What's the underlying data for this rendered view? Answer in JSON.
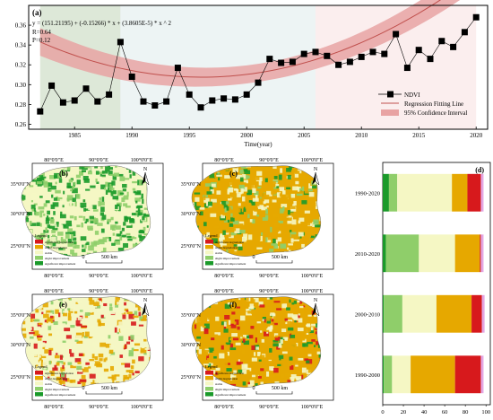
{
  "panel_a": {
    "label": "(a)",
    "equation": "y = (151.21195) + (-0.15266) * x + (3.8605E-5) * x ^ 2",
    "r_text": "R=0.64",
    "p_text": "P=0.12",
    "legend": {
      "ndvi": "NDVI",
      "fit": "Regression Fitting Line",
      "ci": "95% Confidence Interval"
    }
  },
  "map_common": {
    "lon_ticks": [
      "80°0'0\"E",
      "90°0'0\"E",
      "100°0'0\"E"
    ],
    "lat_ticks": [
      "35°0'0\"N",
      "30°0'0\"N",
      "25°0'0\"N"
    ],
    "north": "N",
    "scale_zero": "0",
    "scale_label": "500 km",
    "legend_title": "Legend",
    "legend_items": [
      "significant degradation",
      "slight degradation",
      "stable",
      "slight improvement",
      "significant improvement"
    ]
  },
  "maps": [
    {
      "label": "(b)"
    },
    {
      "label": "(c)"
    },
    {
      "label": "(e)"
    },
    {
      "label": "(f)"
    }
  ],
  "colors": {
    "sig_deg": "#d7191c",
    "slight_deg": "#e6a800",
    "stable": "#f5f7c4",
    "slight_imp": "#8fce6a",
    "sig_imp": "#1a9a2a",
    "ci_band": "#e8a3a3",
    "fit_line": "#c0504d"
  },
  "chart_data": [
    {
      "type": "scatter",
      "title": "",
      "xlabel": "Time(year)",
      "ylabel": "",
      "xlim": [
        1981,
        2021
      ],
      "ylim": [
        0.255,
        0.38
      ],
      "x_ticks": [
        1985,
        1990,
        1995,
        2000,
        2005,
        2010,
        2015,
        2020
      ],
      "y_ticks": [
        0.26,
        0.28,
        0.3,
        0.32,
        0.34,
        0.36
      ],
      "y_tick_labels": [
        "0.26",
        "0.28",
        "0.30",
        "0.32",
        "0.34",
        "0.36"
      ],
      "legend_position": "lower-right",
      "grid": false,
      "series": [
        {
          "name": "NDVI",
          "x": [
            1982,
            1983,
            1984,
            1985,
            1986,
            1987,
            1988,
            1989,
            1990,
            1991,
            1992,
            1993,
            1994,
            1995,
            1996,
            1997,
            1998,
            1999,
            2000,
            2001,
            2002,
            2003,
            2004,
            2005,
            2006,
            2007,
            2008,
            2009,
            2010,
            2011,
            2012,
            2013,
            2014,
            2015,
            2016,
            2017,
            2018,
            2019,
            2020
          ],
          "y": [
            0.273,
            0.299,
            0.282,
            0.284,
            0.296,
            0.283,
            0.29,
            0.343,
            0.308,
            0.283,
            0.279,
            0.283,
            0.317,
            0.29,
            0.277,
            0.284,
            0.286,
            0.285,
            0.29,
            0.302,
            0.326,
            0.322,
            0.323,
            0.331,
            0.333,
            0.329,
            0.32,
            0.323,
            0.328,
            0.333,
            0.331,
            0.351,
            0.317,
            0.335,
            0.326,
            0.344,
            0.338,
            0.353,
            0.368
          ]
        }
      ],
      "shaded_periods": [
        {
          "from": 1982,
          "to": 1989,
          "color": "#dde8d8"
        },
        {
          "from": 1989,
          "to": 2006,
          "color": "#edf4f4"
        },
        {
          "from": 2006,
          "to": 2020,
          "color": "#fbeeee"
        }
      ]
    },
    {
      "type": "bar",
      "orientation": "horizontal-stacked",
      "panel_label": "(d)",
      "categories": [
        "1990-2020",
        "2010-2020",
        "2000-2010",
        "1990-2000"
      ],
      "x_ticks": [
        0,
        20,
        40,
        60,
        80,
        100
      ],
      "xlim": [
        0,
        100
      ],
      "series": [
        {
          "name": "significant improvement",
          "values": [
            6,
            3,
            1,
            1
          ]
        },
        {
          "name": "slight improvement",
          "values": [
            8,
            32,
            18,
            8
          ]
        },
        {
          "name": "stable",
          "values": [
            53,
            35,
            33,
            18
          ]
        },
        {
          "name": "slight degradation",
          "values": [
            15,
            24,
            34,
            43
          ]
        },
        {
          "name": "significant degradation",
          "values": [
            13,
            1,
            10,
            25
          ]
        }
      ]
    }
  ]
}
